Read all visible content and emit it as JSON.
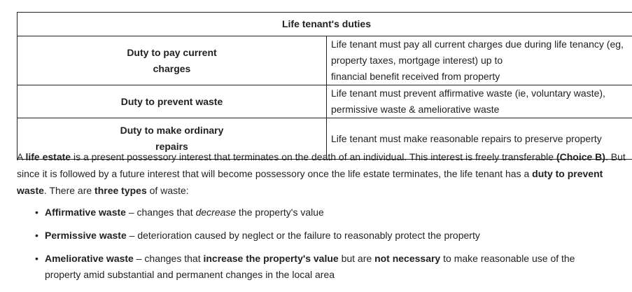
{
  "table": {
    "title": "Life tenant's duties",
    "rows": [
      {
        "name_line1": "Duty to pay current",
        "name_line2": "charges",
        "desc_line1": "Life tenant must pay all current charges due during life tenancy (eg, property taxes, mortgage interest) up to",
        "desc_line2": "financial benefit received from property"
      },
      {
        "name_line1": "Duty to prevent waste",
        "desc_line1": "Life tenant must prevent affirmative waste (ie, voluntary waste), permissive waste & ameliorative waste"
      },
      {
        "name_line1": "Duty to make ordinary",
        "name_line2": "repairs",
        "desc_line1": "Life tenant must make reasonable repairs to preserve property"
      }
    ]
  },
  "paragraph": {
    "p1": "A ",
    "b1": "life estate",
    "p2": " is a present possessory interest that terminates on the death of an individual.  This interest is freely transferable ",
    "b2": "(Choice B)",
    "p3": ".  But since it is followed by a future interest that will become possessory once the life estate terminates, the life tenant has a ",
    "b3": "duty to prevent waste",
    "p4": ".  There are ",
    "b4": "three types",
    "p5": " of waste:"
  },
  "waste_types": {
    "bullet_glyph": "•",
    "affirmative": {
      "term": "Affirmative waste",
      "t1": " – changes that ",
      "em": "decrease",
      "t2": " the property's value"
    },
    "permissive": {
      "term": "Permissive waste",
      "t1": " – deterioration caused by neglect or the failure to reasonably protect the property"
    },
    "ameliorative": {
      "term": "Ameliorative waste",
      "t1": " – changes that ",
      "b1": "increase the property's value",
      "t2": " but are ",
      "b2": "not necessary",
      "t3": " to make reasonable use of the",
      "t4": "property amid substantial and permanent changes in the local area"
    }
  }
}
